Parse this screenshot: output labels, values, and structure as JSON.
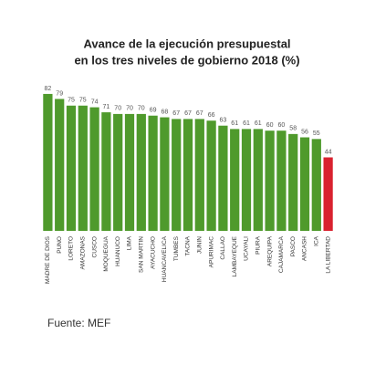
{
  "chart_data": {
    "type": "bar",
    "title": [
      "Avance de la ejecución presupuestal",
      "en los tres niveles de gobierno 2018 (%)"
    ],
    "categories": [
      "MADRE DE DIOS",
      "PUNO",
      "LORETO",
      "AMAZONAS",
      "CUSCO",
      "MOQUEGUA",
      "HUANUCO",
      "LIMA",
      "SAN MARTIN",
      "AYACUCHO",
      "HUANCAVELICA",
      "TUMBES",
      "TACNA",
      "JUNIN",
      "APURIMAC",
      "CALLAO",
      "LAMBAYEQUE",
      "UCAYALI",
      "PIURA",
      "AREQUIPA",
      "CAJAMARCA",
      "PASCO",
      "ANCASH",
      "ICA",
      "LA LIBERTAD"
    ],
    "values": [
      82,
      79,
      75,
      75,
      74,
      71,
      70,
      70,
      70,
      69,
      68,
      67,
      67,
      67,
      66,
      63,
      61,
      61,
      61,
      60,
      60,
      58,
      56,
      55,
      44
    ],
    "colors": [
      "#4f9a2c",
      "#4f9a2c",
      "#4f9a2c",
      "#4f9a2c",
      "#4f9a2c",
      "#4f9a2c",
      "#4f9a2c",
      "#4f9a2c",
      "#4f9a2c",
      "#4f9a2c",
      "#4f9a2c",
      "#4f9a2c",
      "#4f9a2c",
      "#4f9a2c",
      "#4f9a2c",
      "#4f9a2c",
      "#4f9a2c",
      "#4f9a2c",
      "#4f9a2c",
      "#4f9a2c",
      "#4f9a2c",
      "#4f9a2c",
      "#4f9a2c",
      "#4f9a2c",
      "#d9222f"
    ],
    "source": "Fuente: MEF"
  }
}
